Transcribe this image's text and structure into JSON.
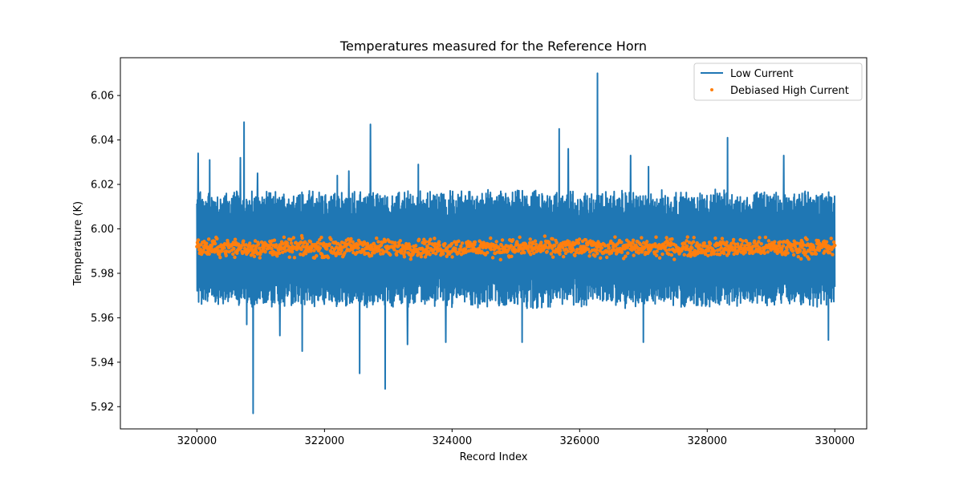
{
  "chart_data": {
    "type": "line",
    "title": "Temperatures measured for the Reference Horn",
    "xlabel": "Record Index",
    "ylabel": "Temperature (K)",
    "xlim": [
      318800,
      330500
    ],
    "ylim": [
      5.91,
      6.077
    ],
    "xticks": [
      320000,
      322000,
      324000,
      326000,
      328000,
      330000
    ],
    "xtick_labels": [
      "320000",
      "322000",
      "324000",
      "326000",
      "328000",
      "330000"
    ],
    "yticks": [
      5.92,
      5.94,
      5.96,
      5.98,
      6.0,
      6.02,
      6.04,
      6.06
    ],
    "ytick_labels": [
      "5.92",
      "5.94",
      "5.96",
      "5.98",
      "6.00",
      "6.02",
      "6.04",
      "6.06"
    ],
    "grid": false,
    "legend_position": "top-right",
    "series": [
      {
        "name": "Low Current",
        "kind": "line",
        "color": "#1f77b4",
        "x_range": [
          320000,
          330000
        ],
        "typical_band": [
          5.966,
          6.016
        ],
        "spikes": [
          {
            "x": 320020,
            "y": 6.034
          },
          {
            "x": 320200,
            "y": 6.031
          },
          {
            "x": 320680,
            "y": 6.032
          },
          {
            "x": 320740,
            "y": 6.048
          },
          {
            "x": 320950,
            "y": 6.025
          },
          {
            "x": 322200,
            "y": 6.024
          },
          {
            "x": 322380,
            "y": 6.026
          },
          {
            "x": 322720,
            "y": 6.047
          },
          {
            "x": 323470,
            "y": 6.029
          },
          {
            "x": 325680,
            "y": 6.045
          },
          {
            "x": 325820,
            "y": 6.036
          },
          {
            "x": 326280,
            "y": 6.07
          },
          {
            "x": 326800,
            "y": 6.033
          },
          {
            "x": 327080,
            "y": 6.028
          },
          {
            "x": 328320,
            "y": 6.041
          },
          {
            "x": 329200,
            "y": 6.033
          },
          {
            "x": 320880,
            "y": 5.917
          },
          {
            "x": 320780,
            "y": 5.957
          },
          {
            "x": 321300,
            "y": 5.952
          },
          {
            "x": 321650,
            "y": 5.945
          },
          {
            "x": 322550,
            "y": 5.935
          },
          {
            "x": 322950,
            "y": 5.928
          },
          {
            "x": 323300,
            "y": 5.948
          },
          {
            "x": 323900,
            "y": 5.949
          },
          {
            "x": 325100,
            "y": 5.949
          },
          {
            "x": 327000,
            "y": 5.949
          },
          {
            "x": 329900,
            "y": 5.95
          }
        ]
      },
      {
        "name": "Debiased High Current",
        "kind": "scatter",
        "color": "#ff7f0e",
        "x_range": [
          320000,
          330000
        ],
        "center": 5.9915,
        "typical_band": [
          5.987,
          5.996
        ]
      }
    ]
  }
}
